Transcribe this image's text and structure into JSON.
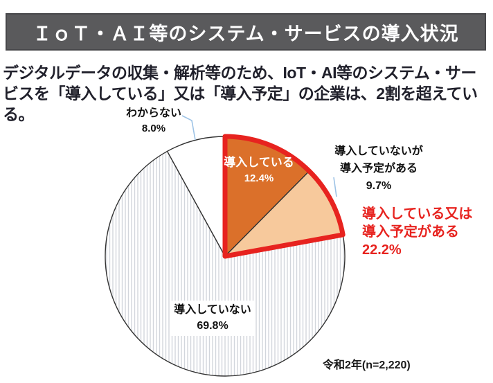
{
  "header": {
    "title": "ＩｏＴ・ＡＩ等のシステム・サービスの導入状況"
  },
  "lead": {
    "line1": "デジタルデータの収集・解析等のため、IoT・AI等のシステム・サー",
    "line2": "ビスを「導入している」又は「導入予定」の企業は、2割を超えている。"
  },
  "chart_data": {
    "type": "pie",
    "title": "IoT・AI等のシステム・サービスの導入状況",
    "unit": "%",
    "start": "top",
    "direction": "clockwise",
    "legend": "none",
    "segments": [
      {
        "label": "導入している",
        "value": 12.4,
        "pct_label": "12.4%",
        "color": "#DB702A",
        "text_color": "#FFFFFF"
      },
      {
        "label": "導入していないが導入予定がある",
        "label_lines": [
          "導入していないが",
          "導入予定がある"
        ],
        "value": 9.7,
        "pct_label": "9.7%",
        "color": "#F7C99C"
      },
      {
        "label": "導入していない",
        "value": 69.8,
        "pct_label": "69.8%",
        "color": "#FFFFFF",
        "pattern": "vertical-hatch"
      },
      {
        "label": "わからない",
        "value": 8.0,
        "pct_label": "8.0%",
        "color": "#FFFFFF"
      }
    ],
    "highlight": {
      "label_lines": [
        "導入している又は",
        "導入予定がある"
      ],
      "value": 22.2,
      "pct_label": "22.2%",
      "covers": [
        "導入している",
        "導入していないが導入予定がある"
      ],
      "color": "#E7231F"
    },
    "note": "令和2年(n=2,220)"
  },
  "colors": {
    "banner_bg": "#5A5A5C",
    "banner_text": "#FFFFFF",
    "lead_text": "#20202B",
    "highlight_red": "#E7231F",
    "leader_line_blue": "#9DC3E6",
    "pie_outline": "#333333",
    "hatch_line": "#D2D6DC"
  }
}
